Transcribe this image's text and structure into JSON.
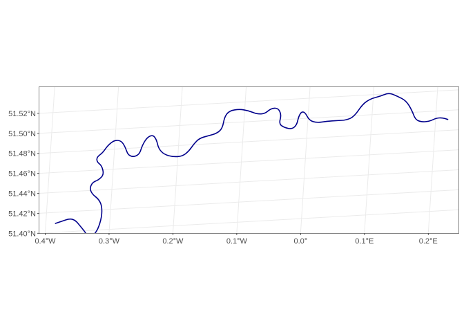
{
  "chart_data": {
    "type": "map",
    "projection_note": "graticule lines tilted; river geometry in lon/lat degrees",
    "x_ticks": [
      {
        "value": -0.4,
        "label": "0.4°W"
      },
      {
        "value": -0.3,
        "label": "0.3°W"
      },
      {
        "value": -0.2,
        "label": "0.2°W"
      },
      {
        "value": -0.1,
        "label": "0.1°W"
      },
      {
        "value": 0.0,
        "label": "0.0°"
      },
      {
        "value": 0.1,
        "label": "0.1°E"
      },
      {
        "value": 0.2,
        "label": "0.2°E"
      }
    ],
    "y_ticks": [
      {
        "value": 51.4,
        "label": "51.40°N"
      },
      {
        "value": 51.42,
        "label": "51.42°N"
      },
      {
        "value": 51.44,
        "label": "51.44°N"
      },
      {
        "value": 51.46,
        "label": "51.46°N"
      },
      {
        "value": 51.48,
        "label": "51.48°N"
      },
      {
        "value": 51.5,
        "label": "51.50°N"
      },
      {
        "value": 51.52,
        "label": "51.52°N"
      }
    ],
    "xlim": [
      -0.41,
      0.245
    ],
    "ylim": [
      51.388,
      51.53
    ],
    "grid": true,
    "series": [
      {
        "color": "#00008b",
        "points": [
          [
            -0.385,
            51.409
          ],
          [
            -0.374,
            51.411
          ],
          [
            -0.363,
            51.413
          ],
          [
            -0.354,
            51.411
          ],
          [
            -0.346,
            51.405
          ],
          [
            -0.338,
            51.399
          ],
          [
            -0.333,
            51.394
          ],
          [
            -0.326,
            51.394
          ],
          [
            -0.318,
            51.4
          ],
          [
            -0.313,
            51.413
          ],
          [
            -0.314,
            51.424
          ],
          [
            -0.32,
            51.431
          ],
          [
            -0.33,
            51.436
          ],
          [
            -0.335,
            51.442
          ],
          [
            -0.331,
            51.448
          ],
          [
            -0.322,
            51.45
          ],
          [
            -0.314,
            51.455
          ],
          [
            -0.318,
            51.464
          ],
          [
            -0.326,
            51.468
          ],
          [
            -0.327,
            51.473
          ],
          [
            -0.318,
            51.477
          ],
          [
            -0.311,
            51.484
          ],
          [
            -0.301,
            51.489
          ],
          [
            -0.29,
            51.488
          ],
          [
            -0.283,
            51.481
          ],
          [
            -0.278,
            51.473
          ],
          [
            -0.268,
            51.471
          ],
          [
            -0.26,
            51.474
          ],
          [
            -0.257,
            51.482
          ],
          [
            -0.25,
            51.49
          ],
          [
            -0.241,
            51.492
          ],
          [
            -0.235,
            51.487
          ],
          [
            -0.231,
            51.478
          ],
          [
            -0.222,
            51.472
          ],
          [
            -0.208,
            51.469
          ],
          [
            -0.193,
            51.469
          ],
          [
            -0.183,
            51.474
          ],
          [
            -0.176,
            51.481
          ],
          [
            -0.168,
            51.486
          ],
          [
            -0.155,
            51.488
          ],
          [
            -0.141,
            51.49
          ],
          [
            -0.133,
            51.495
          ],
          [
            -0.131,
            51.506
          ],
          [
            -0.124,
            51.512
          ],
          [
            -0.108,
            51.513
          ],
          [
            -0.094,
            51.511
          ],
          [
            -0.08,
            51.507
          ],
          [
            -0.068,
            51.507
          ],
          [
            -0.059,
            51.512
          ],
          [
            -0.048,
            51.512
          ],
          [
            -0.042,
            51.505
          ],
          [
            -0.045,
            51.496
          ],
          [
            -0.036,
            51.492
          ],
          [
            -0.024,
            51.49
          ],
          [
            -0.017,
            51.494
          ],
          [
            -0.015,
            51.502
          ],
          [
            -0.011,
            51.507
          ],
          [
            -0.005,
            51.506
          ],
          [
            0.002,
            51.498
          ],
          [
            0.014,
            51.495
          ],
          [
            0.03,
            51.496
          ],
          [
            0.046,
            51.496
          ],
          [
            0.06,
            51.496
          ],
          [
            0.072,
            51.499
          ],
          [
            0.084,
            51.511
          ],
          [
            0.096,
            51.516
          ],
          [
            0.111,
            51.518
          ],
          [
            0.124,
            51.521
          ],
          [
            0.138,
            51.517
          ],
          [
            0.152,
            51.512
          ],
          [
            0.162,
            51.502
          ],
          [
            0.168,
            51.493
          ],
          [
            0.177,
            51.49
          ],
          [
            0.19,
            51.49
          ],
          [
            0.201,
            51.493
          ],
          [
            0.21,
            51.493
          ],
          [
            0.219,
            51.491
          ]
        ]
      }
    ]
  }
}
